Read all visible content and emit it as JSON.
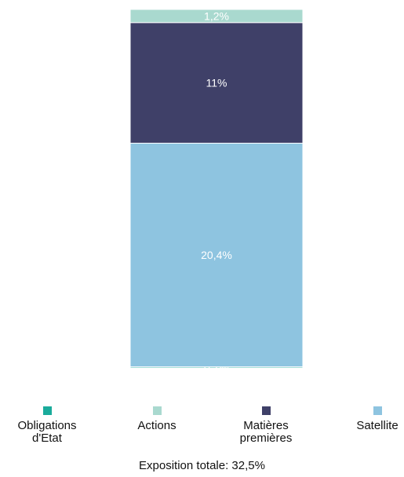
{
  "chart_data": {
    "type": "bar",
    "stacked": true,
    "categories": [
      ""
    ],
    "series": [
      {
        "name": "Obligations d'Etat",
        "values": [
          0.1
        ],
        "label": "0,1%",
        "color": "#1aab9b"
      },
      {
        "name": "Satellite",
        "values": [
          20.4
        ],
        "label": "20,4%",
        "color": "#8ec4e0"
      },
      {
        "name": "Matières premières",
        "values": [
          11
        ],
        "label": "11%",
        "color": "#3f4068"
      },
      {
        "name": "Actions",
        "values": [
          1.2
        ],
        "label": "1,2%",
        "color": "#a9d9cf"
      }
    ],
    "ylim": [
      0,
      32.7
    ],
    "grid": false,
    "legend_position": "bottom",
    "legend": [
      {
        "label": "Obligations d'Etat",
        "color": "#1aab9b"
      },
      {
        "label": "Actions",
        "color": "#a9d9cf"
      },
      {
        "label": "Matières premières",
        "color": "#3f4068"
      },
      {
        "label": "Satellite",
        "color": "#8ec4e0"
      }
    ],
    "total_label": "Exposition totale: 32,5%"
  }
}
